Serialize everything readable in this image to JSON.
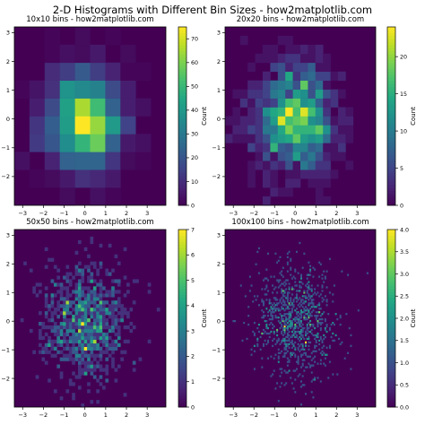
{
  "figure": {
    "suptitle": "2-D Histograms with Different Bin Sizes - how2matplotlib.com"
  },
  "chart_data": [
    {
      "type": "heatmap",
      "title": "10x10 bins - how2matplotlib.com",
      "bins": 10,
      "colorbar_label": "Count",
      "colormap": "viridis",
      "xlim": [
        -3.4,
        3.9
      ],
      "ylim": [
        -3.0,
        3.2
      ],
      "xticks": [
        -3,
        -2,
        -1,
        0,
        1,
        2,
        3
      ],
      "yticks": [
        -2,
        -1,
        0,
        1,
        2,
        3
      ],
      "vmax": 75,
      "cbar_ticks": [
        0,
        10,
        20,
        30,
        40,
        50,
        60,
        70
      ],
      "seed": 11
    },
    {
      "type": "heatmap",
      "title": "20x20 bins - how2matplotlib.com",
      "bins": 20,
      "colorbar_label": "Count",
      "colormap": "viridis",
      "xlim": [
        -3.4,
        3.9
      ],
      "ylim": [
        -3.0,
        3.2
      ],
      "xticks": [
        -3,
        -2,
        -1,
        0,
        1,
        2,
        3
      ],
      "yticks": [
        -2,
        -1,
        0,
        1,
        2,
        3
      ],
      "vmax": 24,
      "cbar_ticks": [
        0,
        5,
        10,
        15,
        20
      ],
      "seed": 22
    },
    {
      "type": "heatmap",
      "title": "50x50 bins - how2matplotlib.com",
      "bins": 50,
      "colorbar_label": "Count",
      "colormap": "viridis",
      "xlim": [
        -3.4,
        3.9
      ],
      "ylim": [
        -3.0,
        3.2
      ],
      "xticks": [
        -3,
        -2,
        -1,
        0,
        1,
        2,
        3
      ],
      "yticks": [
        -2,
        -1,
        0,
        1,
        2,
        3
      ],
      "vmax": 7,
      "cbar_ticks": [
        0,
        1,
        2,
        3,
        4,
        5,
        6,
        7
      ],
      "seed": 33
    },
    {
      "type": "heatmap",
      "title": "100x100 bins - how2matplotlib.com",
      "bins": 100,
      "colorbar_label": "Count",
      "colormap": "viridis",
      "xlim": [
        -3.4,
        3.9
      ],
      "ylim": [
        -3.0,
        3.2
      ],
      "xticks": [
        -3,
        -2,
        -1,
        0,
        1,
        2,
        3
      ],
      "yticks": [
        -2,
        -1,
        0,
        1,
        2,
        3
      ],
      "vmax": 4.0,
      "cbar_ticks": [
        "0.0",
        "0.5",
        "1.0",
        "1.5",
        "2.0",
        "2.5",
        "3.0",
        "3.5",
        "4.0"
      ],
      "cbar_tick_values": [
        0,
        0.5,
        1,
        1.5,
        2,
        2.5,
        3,
        3.5,
        4
      ],
      "seed": 44
    }
  ]
}
